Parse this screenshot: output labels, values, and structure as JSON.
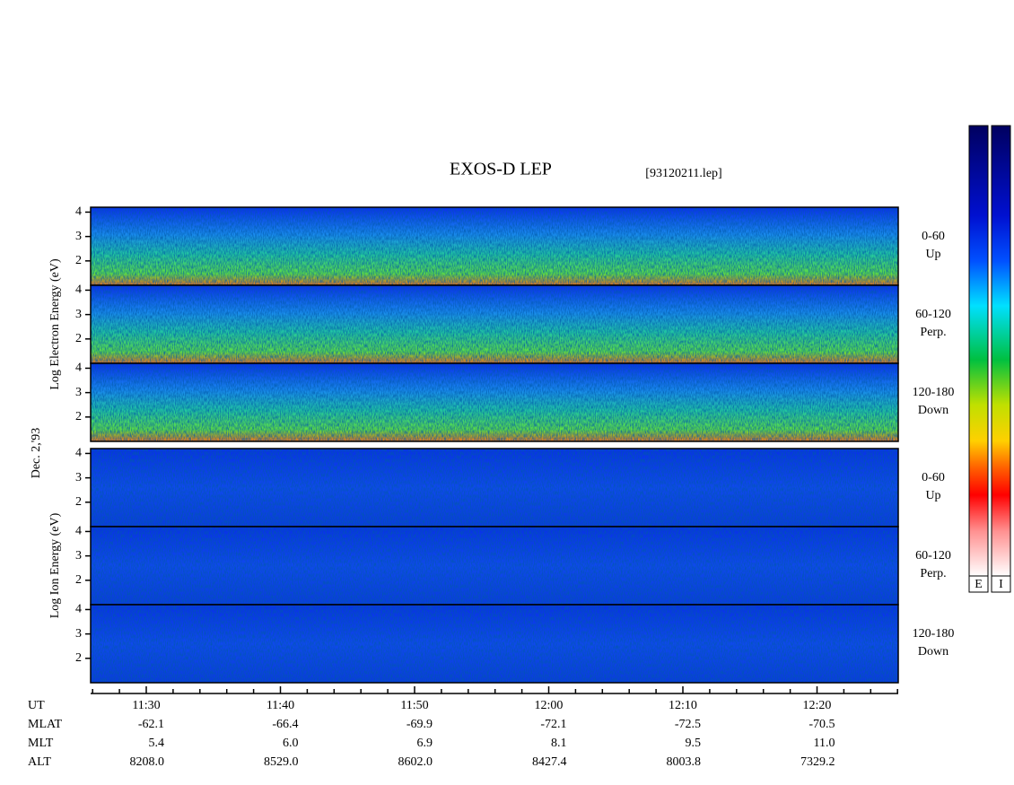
{
  "title": "EXOS-D LEP",
  "file": "[93120211.lep]",
  "date": "Dec. 2,'93",
  "groups": [
    {
      "ylabel": "Log Electron Energy (eV)",
      "panels": [
        {
          "angle": "0-60",
          "direction": "Up"
        },
        {
          "angle": "60-120",
          "direction": "Perp."
        },
        {
          "angle": "120-180",
          "direction": "Down"
        }
      ]
    },
    {
      "ylabel": "Log Ion Energy (eV)",
      "panels": [
        {
          "angle": "0-60",
          "direction": "Up"
        },
        {
          "angle": "60-120",
          "direction": "Perp."
        },
        {
          "angle": "120-180",
          "direction": "Down"
        }
      ]
    }
  ],
  "ylim": [
    1,
    4.2
  ],
  "yticks": [
    2,
    3,
    4
  ],
  "time_rows": [
    {
      "label": "UT",
      "values": [
        "11:30",
        "11:40",
        "11:50",
        "12:00",
        "12:10",
        "12:20"
      ]
    },
    {
      "label": "MLAT",
      "values": [
        "-62.1",
        "-66.4",
        "-69.9",
        "-72.1",
        "-72.5",
        "-70.5"
      ]
    },
    {
      "label": "MLT",
      "values": [
        "5.4",
        "6.0",
        "6.9",
        "8.1",
        "9.5",
        "11.0"
      ]
    },
    {
      "label": "ALT",
      "values": [
        "8208.0",
        "8529.0",
        "8602.0",
        "8427.4",
        "8003.8",
        "7329.2"
      ]
    }
  ],
  "colorbars": [
    "E",
    "I"
  ]
}
